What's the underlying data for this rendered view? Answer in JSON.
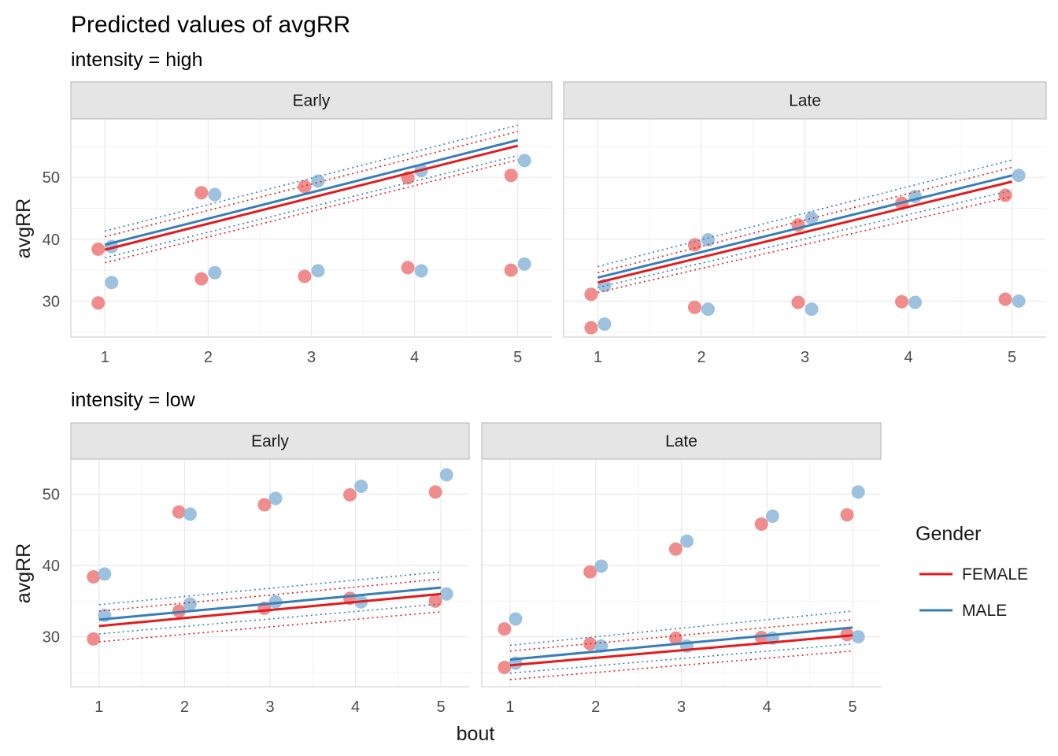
{
  "chart_data": {
    "type": "scatter",
    "title": "Predicted values of avgRR",
    "xlabel": "bout",
    "ylabel": "avgRR",
    "x_ticks": [
      1,
      2,
      3,
      4,
      5
    ],
    "legend": {
      "title": "Gender",
      "position": "right",
      "entries": [
        {
          "label": "FEMALE",
          "color": "#e41a1c"
        },
        {
          "label": "MALE",
          "color": "#377eb8"
        }
      ]
    },
    "colors": {
      "FEMALE": "#e41a1c",
      "MALE": "#377eb8",
      "FEMALE_point": "#f08080",
      "MALE_point": "#92bbdd",
      "strip_fill": "#e5e5e5",
      "grid": "#ebebeb"
    },
    "panels": [
      {
        "intensity_label": "intensity = high",
        "facet": "Early",
        "ylim": [
          24.2,
          59.3
        ],
        "y_ticks": [
          30,
          40,
          50
        ],
        "points": [
          {
            "gender": "FEMALE",
            "x": 1,
            "y": 38.4
          },
          {
            "gender": "MALE",
            "x": 1,
            "y": 38.8
          },
          {
            "gender": "FEMALE",
            "x": 1,
            "y": 29.7
          },
          {
            "gender": "MALE",
            "x": 1,
            "y": 33.0
          },
          {
            "gender": "FEMALE",
            "x": 2,
            "y": 47.5
          },
          {
            "gender": "MALE",
            "x": 2,
            "y": 47.2
          },
          {
            "gender": "FEMALE",
            "x": 2,
            "y": 33.6
          },
          {
            "gender": "MALE",
            "x": 2,
            "y": 34.6
          },
          {
            "gender": "FEMALE",
            "x": 3,
            "y": 48.5
          },
          {
            "gender": "MALE",
            "x": 3,
            "y": 49.4
          },
          {
            "gender": "FEMALE",
            "x": 3,
            "y": 34.0
          },
          {
            "gender": "MALE",
            "x": 3,
            "y": 34.9
          },
          {
            "gender": "FEMALE",
            "x": 4,
            "y": 49.9
          },
          {
            "gender": "MALE",
            "x": 4,
            "y": 51.1
          },
          {
            "gender": "FEMALE",
            "x": 4,
            "y": 35.4
          },
          {
            "gender": "MALE",
            "x": 4,
            "y": 34.9
          },
          {
            "gender": "FEMALE",
            "x": 5,
            "y": 50.3
          },
          {
            "gender": "MALE",
            "x": 5,
            "y": 52.7
          },
          {
            "gender": "FEMALE",
            "x": 5,
            "y": 35.0
          },
          {
            "gender": "MALE",
            "x": 5,
            "y": 36.0
          }
        ],
        "fits": [
          {
            "gender": "FEMALE",
            "x": [
              1,
              5
            ],
            "y": [
              38.3,
              55.1
            ],
            "lower": [
              36.2,
              52.8
            ],
            "upper": [
              40.4,
              57.4
            ]
          },
          {
            "gender": "MALE",
            "x": [
              1,
              5
            ],
            "y": [
              39.1,
              56.0
            ],
            "lower": [
              37.0,
              53.5
            ],
            "upper": [
              41.3,
              58.4
            ]
          }
        ]
      },
      {
        "intensity_label": "",
        "facet": "Late",
        "ylim": [
          24.2,
          59.3
        ],
        "y_ticks": [
          30,
          40,
          50
        ],
        "points": [
          {
            "gender": "FEMALE",
            "x": 1,
            "y": 31.1
          },
          {
            "gender": "MALE",
            "x": 1,
            "y": 32.5
          },
          {
            "gender": "FEMALE",
            "x": 1,
            "y": 25.7
          },
          {
            "gender": "MALE",
            "x": 1,
            "y": 26.3
          },
          {
            "gender": "FEMALE",
            "x": 2,
            "y": 39.1
          },
          {
            "gender": "MALE",
            "x": 2,
            "y": 39.9
          },
          {
            "gender": "FEMALE",
            "x": 2,
            "y": 29.0
          },
          {
            "gender": "MALE",
            "x": 2,
            "y": 28.7
          },
          {
            "gender": "FEMALE",
            "x": 3,
            "y": 42.3
          },
          {
            "gender": "MALE",
            "x": 3,
            "y": 43.4
          },
          {
            "gender": "FEMALE",
            "x": 3,
            "y": 29.8
          },
          {
            "gender": "MALE",
            "x": 3,
            "y": 28.7
          },
          {
            "gender": "FEMALE",
            "x": 4,
            "y": 45.8
          },
          {
            "gender": "MALE",
            "x": 4,
            "y": 46.9
          },
          {
            "gender": "FEMALE",
            "x": 4,
            "y": 29.9
          },
          {
            "gender": "MALE",
            "x": 4,
            "y": 29.8
          },
          {
            "gender": "FEMALE",
            "x": 5,
            "y": 47.1
          },
          {
            "gender": "MALE",
            "x": 5,
            "y": 50.3
          },
          {
            "gender": "FEMALE",
            "x": 5,
            "y": 30.3
          },
          {
            "gender": "MALE",
            "x": 5,
            "y": 30.0
          }
        ],
        "fits": [
          {
            "gender": "FEMALE",
            "x": [
              1,
              5
            ],
            "y": [
              33.0,
              49.3
            ],
            "lower": [
              31.4,
              46.9
            ],
            "upper": [
              34.6,
              51.6
            ]
          },
          {
            "gender": "MALE",
            "x": [
              1,
              5
            ],
            "y": [
              33.8,
              50.3
            ],
            "lower": [
              32.2,
              47.9
            ],
            "upper": [
              35.6,
              52.8
            ]
          }
        ]
      },
      {
        "intensity_label": "intensity = low",
        "facet": "Early",
        "ylim": [
          23.0,
          54.8
        ],
        "y_ticks": [
          30,
          40,
          50
        ],
        "points": [
          {
            "gender": "FEMALE",
            "x": 1,
            "y": 38.4
          },
          {
            "gender": "MALE",
            "x": 1,
            "y": 38.8
          },
          {
            "gender": "FEMALE",
            "x": 1,
            "y": 29.7
          },
          {
            "gender": "MALE",
            "x": 1,
            "y": 33.0
          },
          {
            "gender": "FEMALE",
            "x": 2,
            "y": 47.5
          },
          {
            "gender": "MALE",
            "x": 2,
            "y": 47.2
          },
          {
            "gender": "FEMALE",
            "x": 2,
            "y": 33.6
          },
          {
            "gender": "MALE",
            "x": 2,
            "y": 34.6
          },
          {
            "gender": "FEMALE",
            "x": 3,
            "y": 48.5
          },
          {
            "gender": "MALE",
            "x": 3,
            "y": 49.4
          },
          {
            "gender": "FEMALE",
            "x": 3,
            "y": 34.0
          },
          {
            "gender": "MALE",
            "x": 3,
            "y": 34.9
          },
          {
            "gender": "FEMALE",
            "x": 4,
            "y": 49.9
          },
          {
            "gender": "MALE",
            "x": 4,
            "y": 51.1
          },
          {
            "gender": "FEMALE",
            "x": 4,
            "y": 35.4
          },
          {
            "gender": "MALE",
            "x": 4,
            "y": 34.9
          },
          {
            "gender": "FEMALE",
            "x": 5,
            "y": 50.3
          },
          {
            "gender": "MALE",
            "x": 5,
            "y": 52.7
          },
          {
            "gender": "FEMALE",
            "x": 5,
            "y": 35.0
          },
          {
            "gender": "MALE",
            "x": 5,
            "y": 36.0
          }
        ],
        "fits": [
          {
            "gender": "FEMALE",
            "x": [
              1,
              5
            ],
            "y": [
              31.5,
              36.0
            ],
            "lower": [
              29.3,
              33.5
            ],
            "upper": [
              33.6,
              38.1
            ]
          },
          {
            "gender": "MALE",
            "x": [
              1,
              5
            ],
            "y": [
              32.4,
              36.9
            ],
            "lower": [
              30.4,
              34.6
            ],
            "upper": [
              34.5,
              39.1
            ]
          }
        ]
      },
      {
        "intensity_label": "",
        "facet": "Late",
        "ylim": [
          23.0,
          54.8
        ],
        "y_ticks": [
          30,
          40,
          50
        ],
        "points": [
          {
            "gender": "FEMALE",
            "x": 1,
            "y": 31.1
          },
          {
            "gender": "MALE",
            "x": 1,
            "y": 32.5
          },
          {
            "gender": "FEMALE",
            "x": 1,
            "y": 25.7
          },
          {
            "gender": "MALE",
            "x": 1,
            "y": 26.3
          },
          {
            "gender": "FEMALE",
            "x": 2,
            "y": 39.1
          },
          {
            "gender": "MALE",
            "x": 2,
            "y": 39.9
          },
          {
            "gender": "FEMALE",
            "x": 2,
            "y": 29.0
          },
          {
            "gender": "MALE",
            "x": 2,
            "y": 28.7
          },
          {
            "gender": "FEMALE",
            "x": 3,
            "y": 42.3
          },
          {
            "gender": "MALE",
            "x": 3,
            "y": 43.4
          },
          {
            "gender": "FEMALE",
            "x": 3,
            "y": 29.8
          },
          {
            "gender": "MALE",
            "x": 3,
            "y": 28.7
          },
          {
            "gender": "FEMALE",
            "x": 4,
            "y": 45.8
          },
          {
            "gender": "MALE",
            "x": 4,
            "y": 46.9
          },
          {
            "gender": "FEMALE",
            "x": 4,
            "y": 29.9
          },
          {
            "gender": "MALE",
            "x": 4,
            "y": 29.8
          },
          {
            "gender": "FEMALE",
            "x": 5,
            "y": 47.1
          },
          {
            "gender": "MALE",
            "x": 5,
            "y": 50.3
          },
          {
            "gender": "FEMALE",
            "x": 5,
            "y": 30.3
          },
          {
            "gender": "MALE",
            "x": 5,
            "y": 30.0
          }
        ],
        "fits": [
          {
            "gender": "FEMALE",
            "x": [
              1,
              5
            ],
            "y": [
              26.0,
              30.2
            ],
            "lower": [
              24.0,
              28.0
            ],
            "upper": [
              28.0,
              32.4
            ]
          },
          {
            "gender": "MALE",
            "x": [
              1,
              5
            ],
            "y": [
              26.8,
              31.3
            ],
            "lower": [
              24.9,
              29.0
            ],
            "upper": [
              28.8,
              33.6
            ]
          }
        ]
      }
    ]
  }
}
